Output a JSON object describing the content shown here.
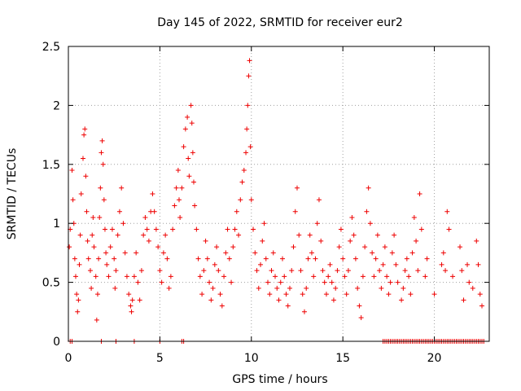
{
  "chart_data": {
    "type": "scatter",
    "title": "Day 145 of 2022, SRMTID for receiver eur2",
    "xlabel": "GPS time / hours",
    "ylabel": "SRMTID / TECUs",
    "xlim": [
      0,
      23
    ],
    "ylim": [
      0,
      2.5
    ],
    "x_ticks": [
      0,
      5,
      10,
      15,
      20
    ],
    "x_tick_labels": [
      "0",
      "5",
      "10",
      "15",
      "20"
    ],
    "y_ticks": [
      0,
      0.5,
      1,
      1.5,
      2,
      2.5
    ],
    "y_tick_labels": [
      "0",
      "0.5",
      "1",
      "1.5",
      "2",
      "2.5"
    ],
    "grid": true,
    "marker": "+",
    "series_color": "#ee0000",
    "series": [
      {
        "name": "SRMTID",
        "points": [
          [
            0.05,
            0.8
          ],
          [
            0.1,
            0.95
          ],
          [
            0.2,
            1.45
          ],
          [
            0.25,
            1.2
          ],
          [
            0.3,
            1.0
          ],
          [
            0.35,
            0.7
          ],
          [
            0.4,
            0.55
          ],
          [
            0.45,
            0.4
          ],
          [
            0.5,
            0.25
          ],
          [
            0.55,
            0.35
          ],
          [
            0.6,
            0.65
          ],
          [
            0.65,
            0.9
          ],
          [
            0.7,
            1.25
          ],
          [
            0.8,
            1.55
          ],
          [
            0.85,
            1.75
          ],
          [
            0.9,
            1.8
          ],
          [
            0.95,
            1.4
          ],
          [
            1.0,
            1.1
          ],
          [
            1.05,
            0.85
          ],
          [
            1.1,
            0.7
          ],
          [
            1.2,
            0.6
          ],
          [
            1.25,
            0.45
          ],
          [
            1.3,
            0.9
          ],
          [
            1.35,
            1.05
          ],
          [
            1.4,
            0.8
          ],
          [
            1.5,
            0.55
          ],
          [
            1.55,
            0.18
          ],
          [
            1.6,
            0.4
          ],
          [
            1.65,
            0.7
          ],
          [
            1.7,
            1.05
          ],
          [
            1.75,
            1.3
          ],
          [
            1.8,
            1.6
          ],
          [
            1.85,
            1.7
          ],
          [
            1.9,
            1.5
          ],
          [
            1.95,
            1.2
          ],
          [
            2.0,
            0.95
          ],
          [
            2.05,
            0.75
          ],
          [
            2.1,
            0.65
          ],
          [
            2.2,
            0.55
          ],
          [
            2.3,
            0.8
          ],
          [
            2.4,
            0.95
          ],
          [
            2.5,
            0.7
          ],
          [
            2.55,
            0.45
          ],
          [
            2.6,
            0.6
          ],
          [
            2.7,
            0.9
          ],
          [
            2.8,
            1.1
          ],
          [
            2.9,
            1.3
          ],
          [
            3.0,
            1.0
          ],
          [
            3.1,
            0.75
          ],
          [
            3.2,
            0.55
          ],
          [
            3.3,
            0.4
          ],
          [
            3.4,
            0.3
          ],
          [
            3.45,
            0.25
          ],
          [
            3.5,
            0.35
          ],
          [
            3.6,
            0.55
          ],
          [
            3.7,
            0.75
          ],
          [
            3.8,
            0.5
          ],
          [
            3.9,
            0.35
          ],
          [
            4.0,
            0.6
          ],
          [
            4.1,
            0.9
          ],
          [
            4.2,
            1.05
          ],
          [
            4.3,
            0.95
          ],
          [
            4.4,
            0.85
          ],
          [
            4.5,
            1.1
          ],
          [
            4.6,
            1.25
          ],
          [
            4.7,
            1.1
          ],
          [
            4.8,
            0.95
          ],
          [
            4.9,
            0.8
          ],
          [
            5.0,
            0.6
          ],
          [
            5.1,
            0.5
          ],
          [
            5.2,
            0.75
          ],
          [
            5.3,
            0.9
          ],
          [
            5.4,
            0.7
          ],
          [
            5.5,
            0.45
          ],
          [
            5.6,
            0.55
          ],
          [
            5.7,
            0.95
          ],
          [
            5.8,
            1.15
          ],
          [
            5.9,
            1.3
          ],
          [
            6.0,
            1.45
          ],
          [
            6.05,
            1.2
          ],
          [
            6.1,
            1.05
          ],
          [
            6.2,
            1.3
          ],
          [
            6.3,
            1.65
          ],
          [
            6.4,
            1.8
          ],
          [
            6.5,
            1.9
          ],
          [
            6.55,
            1.55
          ],
          [
            6.6,
            1.4
          ],
          [
            6.7,
            2.0
          ],
          [
            6.75,
            1.85
          ],
          [
            6.8,
            1.6
          ],
          [
            6.85,
            1.35
          ],
          [
            6.9,
            1.15
          ],
          [
            7.0,
            0.95
          ],
          [
            7.1,
            0.7
          ],
          [
            7.2,
            0.55
          ],
          [
            7.3,
            0.4
          ],
          [
            7.4,
            0.6
          ],
          [
            7.5,
            0.85
          ],
          [
            7.6,
            0.7
          ],
          [
            7.7,
            0.5
          ],
          [
            7.8,
            0.35
          ],
          [
            7.9,
            0.45
          ],
          [
            8.0,
            0.65
          ],
          [
            8.1,
            0.8
          ],
          [
            8.2,
            0.6
          ],
          [
            8.3,
            0.4
          ],
          [
            8.4,
            0.3
          ],
          [
            8.5,
            0.55
          ],
          [
            8.6,
            0.75
          ],
          [
            8.7,
            0.95
          ],
          [
            8.8,
            0.7
          ],
          [
            8.9,
            0.5
          ],
          [
            9.0,
            0.8
          ],
          [
            9.1,
            0.95
          ],
          [
            9.2,
            1.1
          ],
          [
            9.3,
            0.9
          ],
          [
            9.4,
            1.2
          ],
          [
            9.5,
            1.35
          ],
          [
            9.6,
            1.45
          ],
          [
            9.7,
            1.6
          ],
          [
            9.75,
            1.8
          ],
          [
            9.8,
            2.0
          ],
          [
            9.85,
            2.25
          ],
          [
            9.9,
            2.38
          ],
          [
            9.95,
            1.65
          ],
          [
            10.0,
            1.2
          ],
          [
            10.1,
            0.95
          ],
          [
            10.2,
            0.75
          ],
          [
            10.3,
            0.6
          ],
          [
            10.4,
            0.45
          ],
          [
            10.5,
            0.65
          ],
          [
            10.6,
            0.85
          ],
          [
            10.7,
            1.0
          ],
          [
            10.8,
            0.7
          ],
          [
            10.9,
            0.5
          ],
          [
            11.0,
            0.4
          ],
          [
            11.1,
            0.6
          ],
          [
            11.2,
            0.75
          ],
          [
            11.3,
            0.55
          ],
          [
            11.4,
            0.45
          ],
          [
            11.5,
            0.35
          ],
          [
            11.6,
            0.5
          ],
          [
            11.7,
            0.7
          ],
          [
            11.8,
            0.55
          ],
          [
            11.9,
            0.4
          ],
          [
            12.0,
            0.3
          ],
          [
            12.1,
            0.45
          ],
          [
            12.2,
            0.6
          ],
          [
            12.3,
            0.8
          ],
          [
            12.4,
            1.1
          ],
          [
            12.5,
            1.3
          ],
          [
            12.6,
            0.9
          ],
          [
            12.7,
            0.6
          ],
          [
            12.8,
            0.4
          ],
          [
            12.9,
            0.25
          ],
          [
            13.0,
            0.45
          ],
          [
            13.1,
            0.7
          ],
          [
            13.2,
            0.9
          ],
          [
            13.3,
            0.75
          ],
          [
            13.4,
            0.55
          ],
          [
            13.5,
            0.7
          ],
          [
            13.6,
            1.0
          ],
          [
            13.7,
            1.2
          ],
          [
            13.8,
            0.85
          ],
          [
            13.9,
            0.6
          ],
          [
            14.0,
            0.5
          ],
          [
            14.1,
            0.4
          ],
          [
            14.2,
            0.55
          ],
          [
            14.3,
            0.65
          ],
          [
            14.4,
            0.5
          ],
          [
            14.5,
            0.35
          ],
          [
            14.6,
            0.45
          ],
          [
            14.7,
            0.6
          ],
          [
            14.8,
            0.8
          ],
          [
            14.9,
            0.95
          ],
          [
            15.0,
            0.7
          ],
          [
            15.1,
            0.55
          ],
          [
            15.2,
            0.4
          ],
          [
            15.3,
            0.6
          ],
          [
            15.4,
            0.85
          ],
          [
            15.5,
            1.05
          ],
          [
            15.6,
            0.9
          ],
          [
            15.7,
            0.7
          ],
          [
            15.8,
            0.45
          ],
          [
            15.9,
            0.3
          ],
          [
            16.0,
            0.2
          ],
          [
            16.1,
            0.55
          ],
          [
            16.2,
            0.8
          ],
          [
            16.3,
            1.1
          ],
          [
            16.4,
            1.3
          ],
          [
            16.5,
            1.0
          ],
          [
            16.6,
            0.75
          ],
          [
            16.7,
            0.55
          ],
          [
            16.8,
            0.7
          ],
          [
            16.9,
            0.9
          ],
          [
            17.0,
            0.6
          ],
          [
            17.1,
            0.45
          ],
          [
            17.2,
            0.65
          ],
          [
            17.3,
            0.8
          ],
          [
            17.4,
            0.55
          ],
          [
            17.5,
            0.4
          ],
          [
            17.6,
            0.5
          ],
          [
            17.7,
            0.75
          ],
          [
            17.8,
            0.9
          ],
          [
            17.9,
            0.65
          ],
          [
            18.0,
            0.5
          ],
          [
            18.2,
            0.35
          ],
          [
            18.3,
            0.45
          ],
          [
            18.4,
            0.6
          ],
          [
            18.5,
            0.7
          ],
          [
            18.6,
            0.55
          ],
          [
            18.7,
            0.4
          ],
          [
            18.8,
            0.75
          ],
          [
            18.9,
            1.05
          ],
          [
            19.0,
            0.85
          ],
          [
            19.1,
            0.6
          ],
          [
            19.2,
            1.25
          ],
          [
            19.3,
            0.95
          ],
          [
            19.5,
            0.55
          ],
          [
            19.6,
            0.7
          ],
          [
            20.0,
            0.4
          ],
          [
            20.4,
            0.65
          ],
          [
            20.5,
            0.75
          ],
          [
            20.6,
            0.6
          ],
          [
            20.7,
            1.1
          ],
          [
            20.8,
            0.95
          ],
          [
            21.0,
            0.55
          ],
          [
            21.4,
            0.8
          ],
          [
            21.5,
            0.6
          ],
          [
            21.6,
            0.35
          ],
          [
            21.8,
            0.65
          ],
          [
            21.9,
            0.5
          ],
          [
            22.1,
            0.45
          ],
          [
            22.3,
            0.85
          ],
          [
            22.4,
            0.65
          ],
          [
            22.5,
            0.4
          ],
          [
            22.6,
            0.3
          ]
        ]
      }
    ],
    "zero_points_x": [
      0.1,
      0.2,
      1.8,
      2.6,
      3.6,
      5.0,
      6.2,
      6.3,
      17.2,
      17.3,
      17.4,
      17.5,
      17.6,
      17.7,
      17.8,
      17.9,
      18.0,
      18.1,
      18.2,
      18.3,
      18.4,
      18.5,
      18.6,
      18.7,
      18.8,
      18.9,
      19.0,
      19.1,
      19.2,
      19.3,
      19.4,
      19.5,
      19.6,
      19.7,
      19.8,
      19.9,
      20.0,
      20.1,
      20.2,
      20.3,
      20.4,
      20.5,
      20.6,
      20.7,
      20.8,
      20.9,
      21.0,
      21.1,
      21.2,
      21.3,
      21.4,
      21.5,
      21.6,
      21.7,
      21.8,
      21.9,
      22.0,
      22.1,
      22.2,
      22.3,
      22.4,
      22.5,
      22.6,
      22.7
    ]
  }
}
